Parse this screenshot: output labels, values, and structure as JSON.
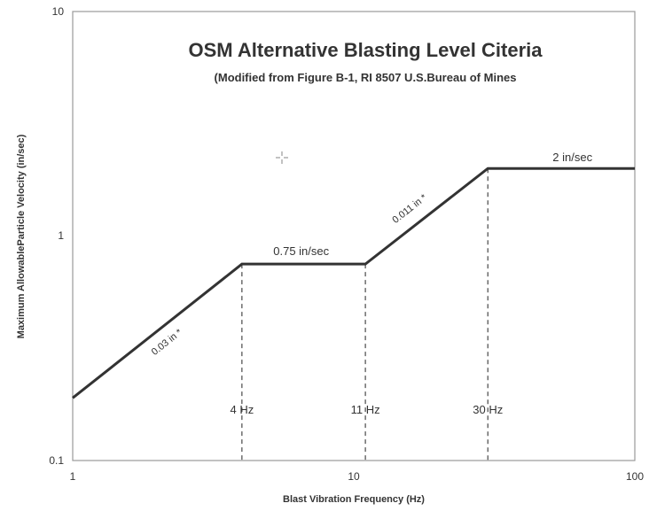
{
  "chart_data": {
    "type": "line",
    "title": "OSM Alternative Blasting Level Citeria",
    "subtitle": "(Modified from Figure B-1, RI 8507 U.S.Bureau of Mines",
    "xlabel": "Blast Vibration Frequency (Hz)",
    "ylabel": "Maximum AllowableParticle Velocity  (in/sec)",
    "x_scale": "log",
    "y_scale": "log",
    "xlim": [
      1,
      100
    ],
    "ylim": [
      0.1,
      10
    ],
    "x_ticks": [
      "1",
      "10",
      "100"
    ],
    "y_ticks": [
      "10",
      "1",
      "0.1"
    ],
    "grid": false,
    "series": [
      {
        "x": [
          1,
          4,
          11,
          30,
          100
        ],
        "y": [
          0.19,
          0.75,
          0.75,
          2,
          2
        ]
      }
    ],
    "vertical_markers": [
      {
        "x": 4,
        "label": "4 Hz"
      },
      {
        "x": 11,
        "label": "11 Hz"
      },
      {
        "x": 30,
        "label": "30 Hz"
      }
    ],
    "annotations": [
      {
        "text": "0.75 in/sec",
        "x": 6.5,
        "y": 0.75
      },
      {
        "text": "2 in/sec",
        "x": 60,
        "y": 2
      },
      {
        "text": "0.03 in *",
        "x": 2.1,
        "y": 0.36
      },
      {
        "text": "0.011 in *",
        "x": 17.5,
        "y": 1.2
      }
    ],
    "line_color": "#333333",
    "cursor_icon": "crosshair-icon"
  }
}
